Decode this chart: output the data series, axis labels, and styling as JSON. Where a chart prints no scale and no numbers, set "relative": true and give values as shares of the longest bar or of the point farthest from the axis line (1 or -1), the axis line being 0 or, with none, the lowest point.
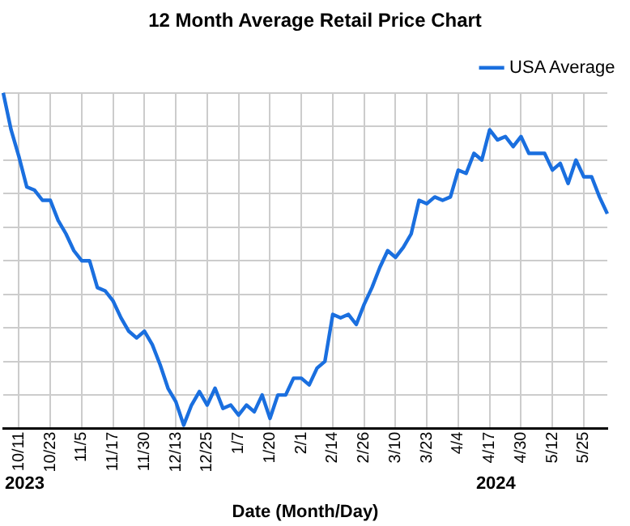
{
  "chart_data": {
    "type": "line",
    "title": "12 Month Average Retail Price Chart",
    "xlabel": "Date (Month/Day)",
    "categories": [
      null,
      null,
      "10/11",
      null,
      null,
      null,
      "10/23",
      null,
      null,
      null,
      "11/5",
      null,
      null,
      null,
      "11/17",
      null,
      null,
      null,
      "11/30",
      null,
      null,
      null,
      "12/13",
      null,
      null,
      null,
      "12/25",
      null,
      null,
      null,
      "1/7",
      null,
      null,
      null,
      "1/20",
      null,
      null,
      null,
      "2/1",
      null,
      null,
      null,
      "2/14",
      null,
      null,
      null,
      "2/26",
      null,
      null,
      null,
      "3/10",
      null,
      null,
      null,
      "3/23",
      null,
      null,
      null,
      "4/4",
      null,
      null,
      null,
      "4/17",
      null,
      null,
      null,
      "4/30",
      null,
      null,
      null,
      "5/12",
      null,
      null,
      null,
      "5/25",
      null,
      null,
      null
    ],
    "relative": true,
    "series": [
      {
        "name": "USA Average",
        "color": "#1a6fdf",
        "values": [
          1.0,
          0.89,
          0.81,
          0.72,
          0.71,
          0.68,
          0.68,
          0.62,
          0.58,
          0.53,
          0.5,
          0.5,
          0.42,
          0.41,
          0.38,
          0.33,
          0.29,
          0.27,
          0.29,
          0.25,
          0.19,
          0.12,
          0.08,
          0.01,
          0.07,
          0.11,
          0.07,
          0.12,
          0.06,
          0.07,
          0.04,
          0.07,
          0.05,
          0.1,
          0.03,
          0.1,
          0.1,
          0.15,
          0.15,
          0.13,
          0.18,
          0.2,
          0.34,
          0.33,
          0.34,
          0.31,
          0.37,
          0.42,
          0.48,
          0.53,
          0.51,
          0.54,
          0.58,
          0.68,
          0.67,
          0.69,
          0.68,
          0.69,
          0.77,
          0.76,
          0.82,
          0.8,
          0.89,
          0.86,
          0.87,
          0.84,
          0.87,
          0.82,
          0.82,
          0.82,
          0.77,
          0.79,
          0.73,
          0.8,
          0.75,
          0.75,
          0.69,
          0.64
        ]
      }
    ],
    "annotations": [
      "2023",
      "2024"
    ],
    "grid": true,
    "legend": "top right",
    "marker": "none",
    "line_style": "solid"
  }
}
